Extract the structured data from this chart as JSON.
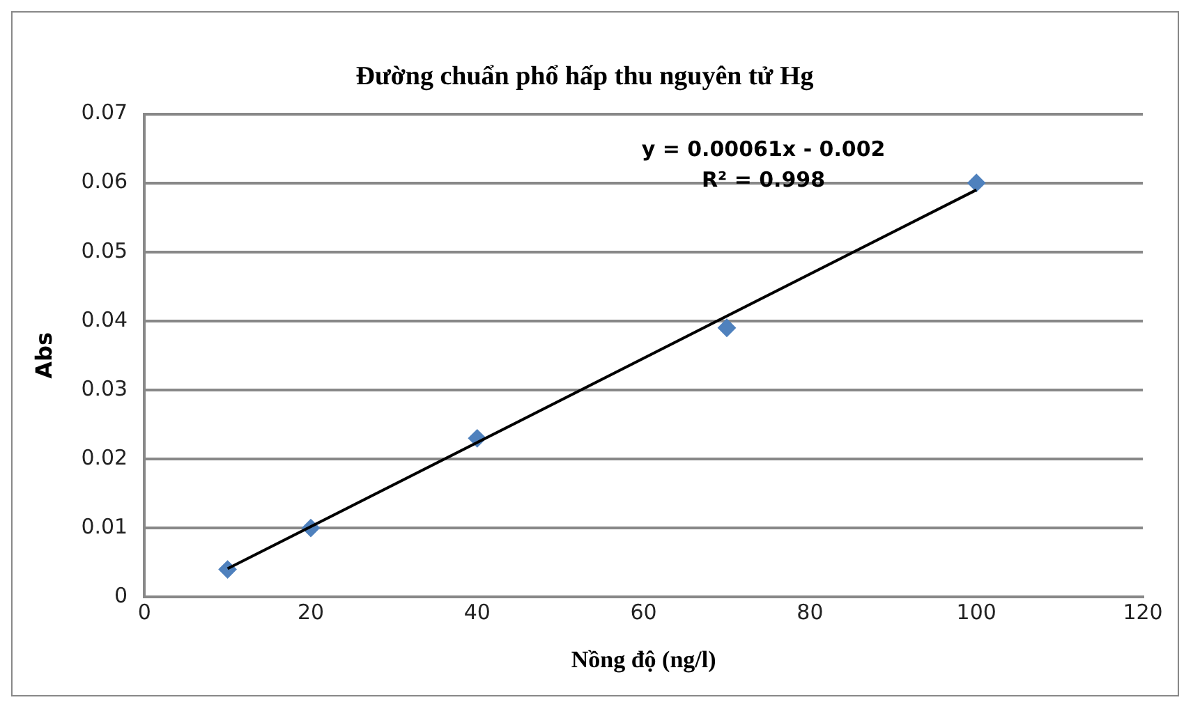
{
  "chart_data": {
    "type": "scatter",
    "title": "Đường chuẩn phổ hấp thu nguyên tử Hg",
    "xlabel": "Nồng độ (ng/l)",
    "ylabel": "Abs",
    "x": [
      10,
      20,
      40,
      70,
      100
    ],
    "series": [
      {
        "color": "#4f81bd",
        "values": [
          0.004,
          0.01,
          0.023,
          0.039,
          0.06
        ]
      },
      {
        "type": "line",
        "color": "#000000",
        "x": [
          10,
          100
        ],
        "values": [
          0.0041,
          0.059
        ],
        "marker": "none"
      }
    ],
    "xlim": [
      0,
      120
    ],
    "xticks": [
      0,
      20,
      40,
      60,
      80,
      100,
      120
    ],
    "ylim": [
      0,
      0.07
    ],
    "yticks": [
      0,
      0.01,
      0.02,
      0.03,
      0.04,
      0.05,
      0.06,
      0.07
    ],
    "grid": "y",
    "legend": false,
    "marker": "diamond",
    "annotations": [
      "y = 0.00061x - 0.002",
      "R² = 0.998"
    ]
  }
}
